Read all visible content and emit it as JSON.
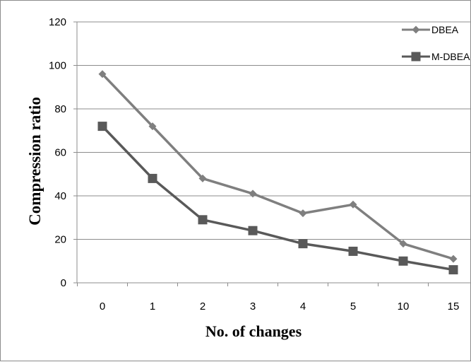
{
  "chart_data": {
    "type": "line",
    "title": "",
    "xlabel": "No. of changes",
    "ylabel": "Compression ratio",
    "categories": [
      "0",
      "1",
      "2",
      "3",
      "4",
      "5",
      "10",
      "15"
    ],
    "ylim": [
      0,
      120
    ],
    "yticks": [
      "0",
      "20",
      "40",
      "60",
      "80",
      "100",
      "120"
    ],
    "grid": "horizontal",
    "legend_position": "top-right",
    "series": [
      {
        "name": "DBEA",
        "values": [
          96,
          72,
          48,
          41,
          32,
          36,
          18,
          11
        ],
        "marker": "diamond",
        "color": "#7f7f7f"
      },
      {
        "name": "M-DBEA",
        "values": [
          72,
          48,
          29,
          24,
          18,
          14.5,
          10,
          6
        ],
        "marker": "square",
        "color": "#595959"
      }
    ]
  }
}
